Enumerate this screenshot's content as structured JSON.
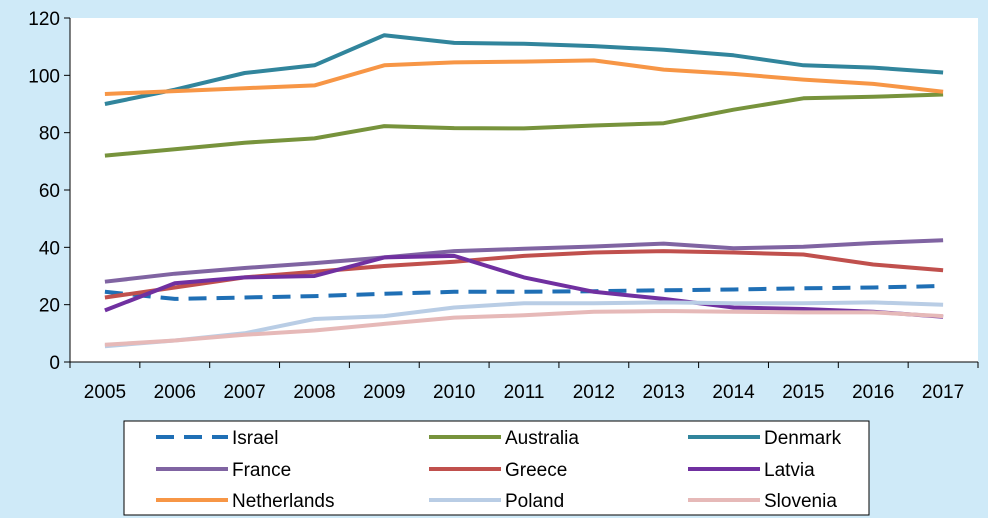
{
  "chart_data": {
    "type": "line",
    "title": "",
    "xlabel": "",
    "ylabel": "",
    "x": [
      2005,
      2006,
      2007,
      2008,
      2009,
      2010,
      2011,
      2012,
      2013,
      2014,
      2015,
      2016,
      2017
    ],
    "ylim": [
      0,
      120
    ],
    "yticks": [
      0,
      20,
      40,
      60,
      80,
      100,
      120
    ],
    "grid": false,
    "legend": "bottom",
    "series": [
      {
        "name": "Israel",
        "color": "#1f6fb5",
        "dashed": true,
        "values": [
          24.5,
          22,
          22.5,
          23,
          23.8,
          24.5,
          24.5,
          24.7,
          25,
          25.3,
          25.7,
          26,
          26.5
        ]
      },
      {
        "name": "Australia",
        "color": "#77933c",
        "dashed": false,
        "values": [
          72,
          74.2,
          76.5,
          78,
          82.3,
          81.6,
          81.5,
          82.5,
          83.3,
          88,
          92,
          92.5,
          93.3
        ]
      },
      {
        "name": "Denmark",
        "color": "#31859c",
        "dashed": false,
        "values": [
          90,
          95,
          100.8,
          103.5,
          114,
          111.3,
          111,
          110.2,
          108.9,
          107,
          103.5,
          102.7,
          101
        ]
      },
      {
        "name": "France",
        "color": "#8064a2",
        "dashed": false,
        "values": [
          28,
          30.8,
          32.8,
          34.5,
          36.5,
          38.7,
          39.5,
          40.3,
          41.3,
          39.7,
          40.2,
          41.5,
          42.5
        ]
      },
      {
        "name": "Greece",
        "color": "#c0504d",
        "dashed": false,
        "values": [
          22.5,
          26,
          29.5,
          31.5,
          33.5,
          35,
          37,
          38.2,
          38.7,
          38.2,
          37.5,
          34,
          32
        ]
      },
      {
        "name": "Latvia",
        "color": "#7030a0",
        "dashed": false,
        "values": [
          18,
          27.5,
          29.5,
          30,
          36.5,
          37,
          29.5,
          24.5,
          22,
          19,
          18.5,
          17.5,
          15.8
        ]
      },
      {
        "name": "Netherlands",
        "color": "#f79646",
        "dashed": false,
        "values": [
          93.5,
          94.5,
          95.5,
          96.5,
          103.5,
          104.5,
          104.8,
          105.2,
          102,
          100.5,
          98.5,
          97,
          94.3
        ]
      },
      {
        "name": "Poland",
        "color": "#b9cde5",
        "dashed": false,
        "values": [
          5.5,
          7.5,
          10,
          15,
          16,
          19,
          20.5,
          20.5,
          20.8,
          20.5,
          20.5,
          20.8,
          20
        ]
      },
      {
        "name": "Slovenia",
        "color": "#e6b9b8",
        "dashed": false,
        "values": [
          6,
          7.5,
          9.5,
          11,
          13.3,
          15.5,
          16.3,
          17.5,
          17.8,
          17.5,
          17.3,
          17.3,
          16
        ]
      }
    ]
  }
}
